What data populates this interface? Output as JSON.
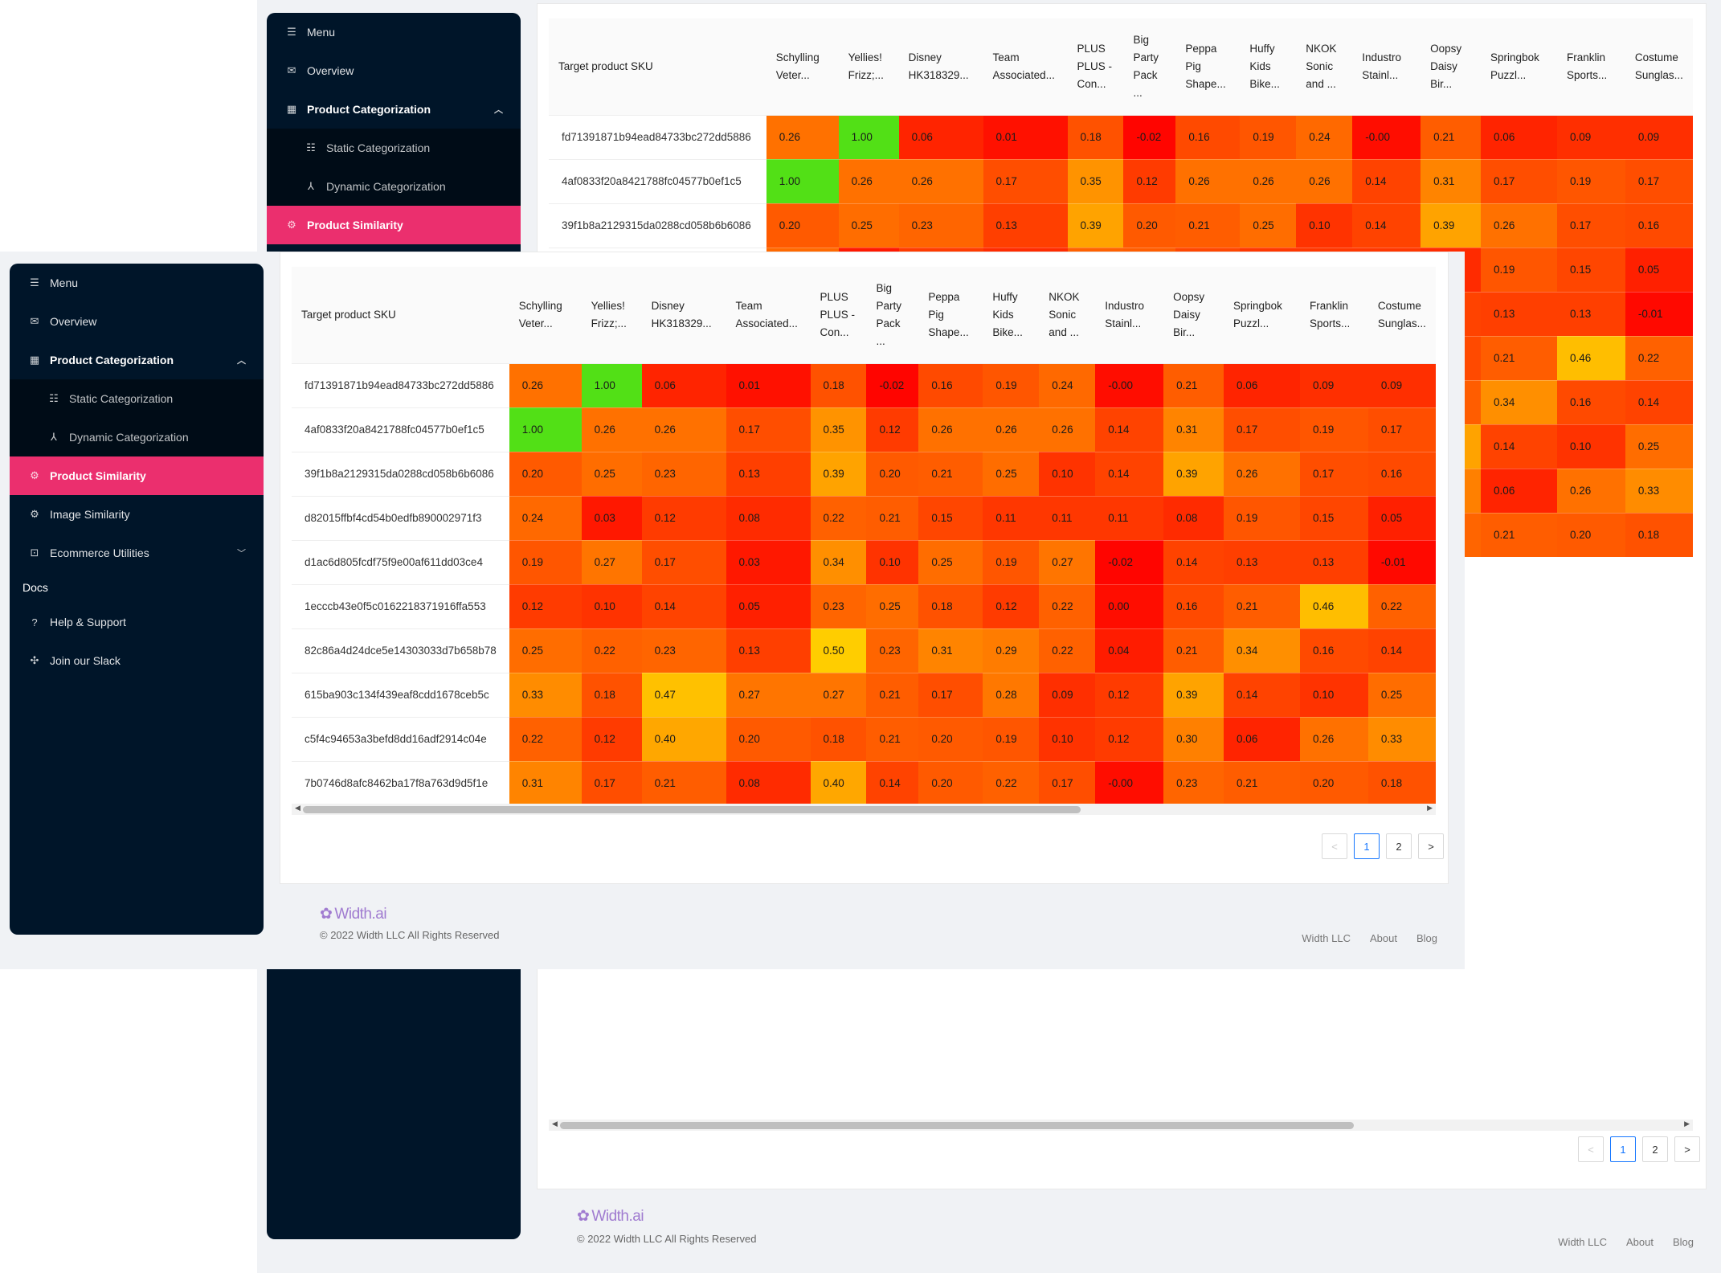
{
  "nav": {
    "menu": "Menu",
    "overview": "Overview",
    "product_categorization": "Product Categorization",
    "static_categorization": "Static Categorization",
    "dynamic_categorization": "Dynamic Categorization",
    "product_similarity": "Product Similarity",
    "image_similarity": "Image Similarity",
    "ecommerce_utilities": "Ecommerce Utilities",
    "docs": "Docs",
    "help_support": "Help & Support",
    "join_slack": "Join our Slack"
  },
  "icons": {
    "menu": "menu-icon",
    "overview": "mail-icon",
    "product_categorization": "grid-icon",
    "static": "list-icon",
    "dynamic": "cluster-icon",
    "similarity": "gear-icon",
    "image": "gear-icon",
    "ecommerce": "briefcase-icon",
    "help": "question-icon",
    "slack": "slack-icon"
  },
  "table": {
    "sku_header": "Target product SKU",
    "columns": [
      "Schylling Veter...",
      "Yellies! Frizz;...",
      "Disney HK318329...",
      "Team Associated...",
      "PLUS PLUS - Con...",
      "Big Party Pack ...",
      "Peppa Pig Shape...",
      "Huffy Kids Bike...",
      "NKOK Sonic and ...",
      "Industro Stainl...",
      "Oopsy Daisy Bir...",
      "Springbok Puzzl...",
      "Franklin Sports...",
      "Costume Sunglas..."
    ],
    "rows": [
      {
        "sku": "fd71391871b94ead84733bc272dd5886",
        "values": [
          "0.26",
          "1.00",
          "0.06",
          "0.01",
          "0.18",
          "-0.02",
          "0.16",
          "0.19",
          "0.24",
          "-0.00",
          "0.21",
          "0.06",
          "0.09",
          "0.09"
        ]
      },
      {
        "sku": "4af0833f20a8421788fc04577b0ef1c5",
        "values": [
          "1.00",
          "0.26",
          "0.26",
          "0.17",
          "0.35",
          "0.12",
          "0.26",
          "0.26",
          "0.26",
          "0.14",
          "0.31",
          "0.17",
          "0.19",
          "0.17"
        ]
      },
      {
        "sku": "39f1b8a2129315da0288cd058b6b6086",
        "values": [
          "0.20",
          "0.25",
          "0.23",
          "0.13",
          "0.39",
          "0.20",
          "0.21",
          "0.25",
          "0.10",
          "0.14",
          "0.39",
          "0.26",
          "0.17",
          "0.16"
        ]
      },
      {
        "sku": "d82015ffbf4cd54b0edfb890002971f3",
        "values": [
          "0.24",
          "0.03",
          "0.12",
          "0.08",
          "0.22",
          "0.21",
          "0.15",
          "0.11",
          "0.11",
          "0.11",
          "0.08",
          "0.19",
          "0.15",
          "0.05"
        ]
      },
      {
        "sku": "d1ac6d805fcdf75f9e00af611dd03ce4",
        "values": [
          "0.19",
          "0.27",
          "0.17",
          "0.03",
          "0.34",
          "0.10",
          "0.25",
          "0.19",
          "0.27",
          "-0.02",
          "0.14",
          "0.13",
          "0.13",
          "-0.01"
        ]
      },
      {
        "sku": "1ecccb43e0f5c0162218371916ffa553",
        "values": [
          "0.12",
          "0.10",
          "0.14",
          "0.05",
          "0.23",
          "0.25",
          "0.18",
          "0.12",
          "0.22",
          "0.00",
          "0.16",
          "0.21",
          "0.46",
          "0.22"
        ]
      },
      {
        "sku": "82c86a4d24dce5e14303033d7b658b78",
        "values": [
          "0.25",
          "0.22",
          "0.23",
          "0.13",
          "0.50",
          "0.23",
          "0.31",
          "0.29",
          "0.22",
          "0.04",
          "0.21",
          "0.34",
          "0.16",
          "0.14"
        ]
      },
      {
        "sku": "615ba903c134f439eaf8cdd1678ceb5c",
        "values": [
          "0.33",
          "0.18",
          "0.47",
          "0.27",
          "0.27",
          "0.21",
          "0.17",
          "0.28",
          "0.09",
          "0.12",
          "0.39",
          "0.14",
          "0.10",
          "0.25"
        ]
      },
      {
        "sku": "c5f4c94653a3befd8dd16adf2914c04e",
        "values": [
          "0.22",
          "0.12",
          "0.40",
          "0.20",
          "0.18",
          "0.21",
          "0.20",
          "0.19",
          "0.10",
          "0.12",
          "0.30",
          "0.06",
          "0.26",
          "0.33"
        ]
      },
      {
        "sku": "7b0746d8afc8462ba17f8a763d9d5f1e",
        "values": [
          "0.31",
          "0.17",
          "0.21",
          "0.08",
          "0.40",
          "0.14",
          "0.20",
          "0.22",
          "0.17",
          "-0.00",
          "0.23",
          "0.21",
          "0.20",
          "0.18"
        ]
      }
    ]
  },
  "pagination": {
    "prev": "<",
    "page1": "1",
    "page2": "2",
    "next": ">"
  },
  "footer": {
    "logo": "Width.ai",
    "copyright": "© 2022 Width LLC All Rights Reserved",
    "links": [
      "Width LLC",
      "About",
      "Blog"
    ]
  },
  "colors": {
    "active_nav": "#eb2f6e",
    "sidebar_bg": "#001529",
    "page_bg": "#f0f2f5",
    "pager_active": "#1677ff"
  }
}
